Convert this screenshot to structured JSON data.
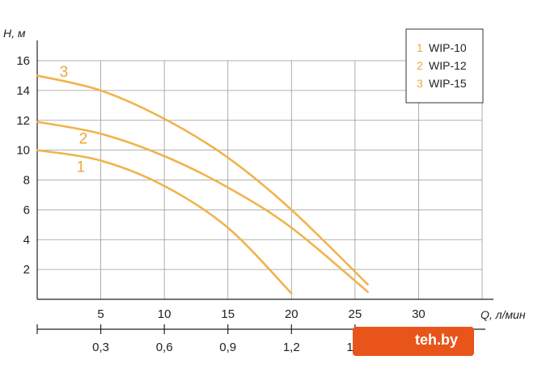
{
  "chart_data": {
    "type": "line",
    "ylabel": "H, м",
    "xlabel": "Q, л/мин",
    "x_ticks": [
      5,
      10,
      15,
      20,
      25,
      30
    ],
    "x2_ticks": [
      "0,3",
      "0,6",
      "0,9",
      "1,2",
      "1,5"
    ],
    "y_ticks": [
      2,
      4,
      6,
      8,
      10,
      12,
      14,
      16
    ],
    "xlim": [
      0,
      35
    ],
    "ylim": [
      0,
      16
    ],
    "grid": true,
    "legend_position": "top-right",
    "colors": {
      "curve": "#f0b44c",
      "label": "#e8a93a",
      "grid": "#999999"
    },
    "series": [
      {
        "name": "WIP-10",
        "label": "1",
        "x": [
          0,
          5,
          10,
          15,
          20
        ],
        "y": [
          10,
          9.3,
          7.6,
          4.8,
          0.4
        ]
      },
      {
        "name": "WIP-12",
        "label": "2",
        "x": [
          0,
          5,
          10,
          15,
          20,
          26
        ],
        "y": [
          11.9,
          11.1,
          9.6,
          7.5,
          4.8,
          0.5
        ]
      },
      {
        "name": "WIP-15",
        "label": "3",
        "x": [
          0,
          5,
          10,
          15,
          20,
          26
        ],
        "y": [
          15,
          14,
          12.1,
          9.5,
          6.0,
          1.0
        ]
      }
    ]
  },
  "legend": {
    "items": [
      {
        "num": "1",
        "name": "WIP-10"
      },
      {
        "num": "2",
        "name": "WIP-12"
      },
      {
        "num": "3",
        "name": "WIP-15"
      }
    ]
  },
  "watermark": {
    "text": "teh.by"
  }
}
